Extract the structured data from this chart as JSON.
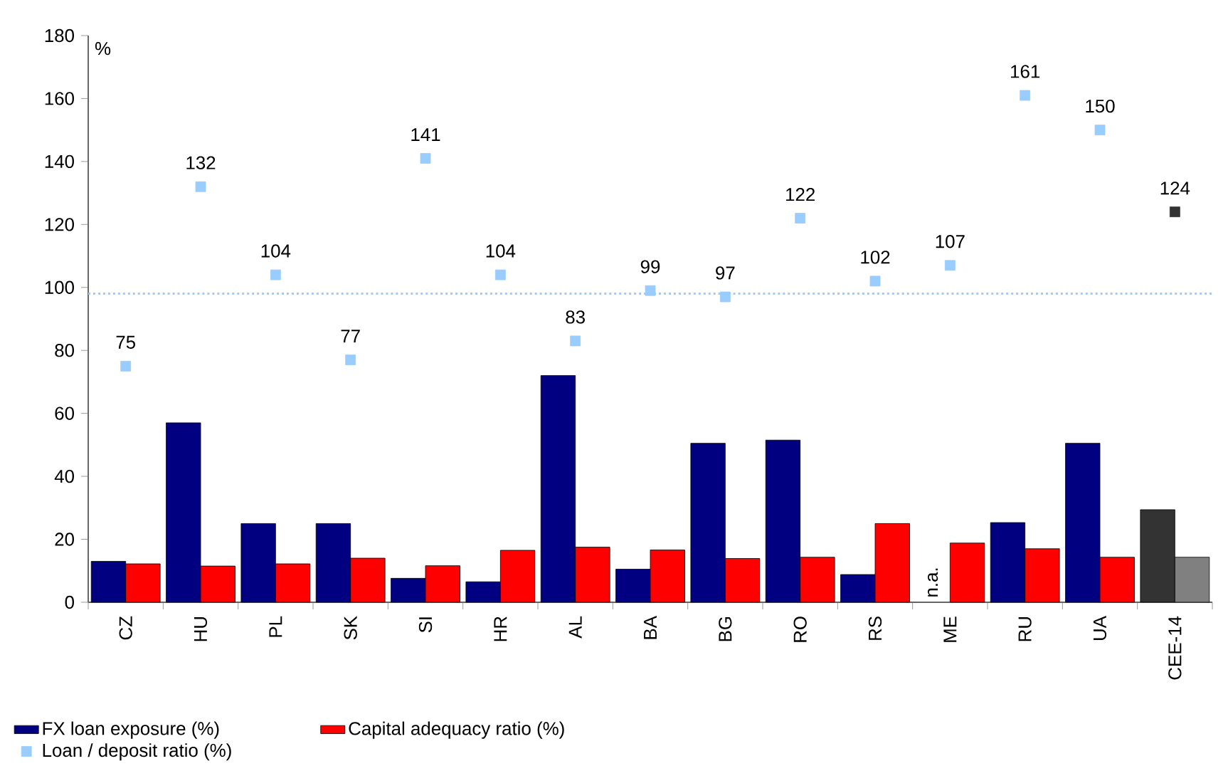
{
  "chart_data": {
    "type": "bar",
    "ylabel": "%",
    "categories": [
      "CZ",
      "HU",
      "PL",
      "SK",
      "SI",
      "HR",
      "AL",
      "BA",
      "BG",
      "RO",
      "RS",
      "ME",
      "RU",
      "UA",
      "CEE-14"
    ],
    "ylim": [
      0,
      180
    ],
    "yticks": [
      0,
      20,
      40,
      60,
      80,
      100,
      120,
      140,
      160,
      180
    ],
    "legend": "bottom",
    "marker": "square",
    "series": [
      {
        "name": "FX loan exposure (%)",
        "color": "#000080",
        "colors": [
          "#000080",
          "#000080",
          "#000080",
          "#000080",
          "#000080",
          "#000080",
          "#000080",
          "#000080",
          "#000080",
          "#000080",
          "#000080",
          "#000080",
          "#000080",
          "#000080",
          "#333333"
        ],
        "values": [
          13,
          57,
          25,
          25,
          7.6,
          6.5,
          72,
          10.5,
          50.5,
          51.5,
          8.8,
          null,
          25.3,
          50.5,
          29.4
        ],
        "value_labels": [
          null,
          null,
          null,
          null,
          null,
          null,
          null,
          null,
          null,
          null,
          null,
          "n.a.",
          null,
          null,
          null
        ]
      },
      {
        "name": "Capital adequacy ratio (%)",
        "color": "#ff0000",
        "colors": [
          "#ff0000",
          "#ff0000",
          "#ff0000",
          "#ff0000",
          "#ff0000",
          "#ff0000",
          "#ff0000",
          "#ff0000",
          "#ff0000",
          "#ff0000",
          "#ff0000",
          "#ff0000",
          "#ff0000",
          "#ff0000",
          "#808080"
        ],
        "values": [
          12.2,
          11.5,
          12.2,
          14,
          11.6,
          16.5,
          17.5,
          16.6,
          13.9,
          14.3,
          25,
          18.8,
          17,
          14.3,
          14.3
        ]
      },
      {
        "name": "Loan / deposit ratio (%)",
        "type": "scatter",
        "color": "#99ccff",
        "colors": [
          "#99ccff",
          "#99ccff",
          "#99ccff",
          "#99ccff",
          "#99ccff",
          "#99ccff",
          "#99ccff",
          "#99ccff",
          "#99ccff",
          "#99ccff",
          "#99ccff",
          "#99ccff",
          "#99ccff",
          "#99ccff",
          "#333333"
        ],
        "values": [
          75,
          132,
          104,
          77,
          141,
          104,
          83,
          99,
          97,
          122,
          102,
          107,
          161,
          150,
          124
        ],
        "value_labels": [
          "75",
          "132",
          "104",
          "77",
          "141",
          "104",
          "83",
          "99",
          "97",
          "122",
          "102",
          "107",
          "161",
          "150",
          "124"
        ]
      }
    ],
    "ref_lines": [
      {
        "axis": "y",
        "value": 98,
        "color": "#99ccff",
        "line_style": "dotted"
      }
    ]
  }
}
